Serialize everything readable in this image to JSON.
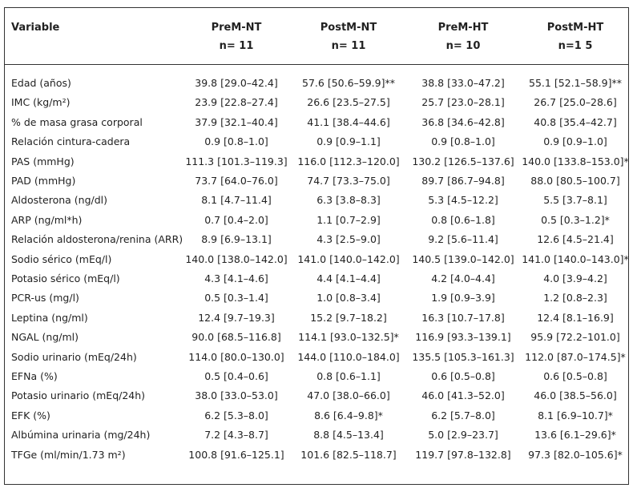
{
  "table": {
    "columns": [
      {
        "name": "Variable"
      },
      {
        "name": "PreM-NT",
        "n": "n= 11"
      },
      {
        "name": "PostM-NT",
        "n": "n= 11"
      },
      {
        "name": "PreM-HT",
        "n": "n= 10"
      },
      {
        "name": "PostM-HT",
        "n": "n=1 5"
      }
    ],
    "rows": [
      [
        "Edad (años)",
        "39.8 [29.0–42.4]",
        "57.6 [50.6–59.9]**",
        "38.8 [33.0–47.2]",
        "55.1 [52.1–58.9]**"
      ],
      [
        "IMC (kg/m²)",
        "23.9 [22.8–27.4]",
        "26.6 [23.5–27.5]",
        "25.7 [23.0–28.1]",
        "26.7 [25.0–28.6]"
      ],
      [
        "% de masa grasa corporal",
        "37.9 [32.1–40.4]",
        "41.1 [38.4–44.6]",
        "36.8 [34.6–42.8]",
        "40.8 [35.4–42.7]"
      ],
      [
        "Relación cintura-cadera",
        "0.9 [0.8–1.0]",
        "0.9 [0.9–1.1]",
        "0.9 [0.8–1.0]",
        "0.9 [0.9–1.0]"
      ],
      [
        "PAS (mmHg)",
        "111.3 [101.3–119.3]",
        "116.0 [112.3–120.0]",
        "130.2 [126.5–137.6]",
        "140.0 [133.8–153.0]*"
      ],
      [
        "PAD (mmHg)",
        "73.7 [64.0–76.0]",
        "74.7 [73.3–75.0]",
        "89.7 [86.7–94.8]",
        "88.0 [80.5–100.7]"
      ],
      [
        "Aldosterona (ng/dl)",
        "8.1 [4.7–11.4]",
        "6.3 [3.8–8.3]",
        "5.3 [4.5–12.2]",
        "5.5 [3.7–8.1]"
      ],
      [
        "ARP (ng/ml*h)",
        "0.7 [0.4–2.0]",
        "1.1 [0.7–2.9]",
        "0.8 [0.6–1.8]",
        "0.5 [0.3–1.2]*"
      ],
      [
        "Relación aldosterona/renina (ARR)",
        "8.9 [6.9–13.1]",
        "4.3 [2.5–9.0]",
        "9.2 [5.6–11.4]",
        "12.6 [4.5–21.4]"
      ],
      [
        "Sodio sérico (mEq/l)",
        "140.0 [138.0–142.0]",
        "141.0 [140.0–142.0]",
        "140.5 [139.0–142.0]",
        "141.0 [140.0–143.0]*"
      ],
      [
        "Potasio sérico (mEq/l)",
        "4.3 [4.1–4.6]",
        "4.4 [4.1–4.4]",
        "4.2 [4.0–4.4]",
        "4.0 [3.9–4.2]"
      ],
      [
        "PCR-us (mg/l)",
        "0.5 [0.3–1.4]",
        "1.0 [0.8–3.4]",
        "1.9 [0.9–3.9]",
        "1.2 [0.8–2.3]"
      ],
      [
        "Leptina (ng/ml)",
        "12.4 [9.7–19.3]",
        "15.2 [9.7–18.2]",
        "16.3 [10.7–17.8]",
        "12.4 [8.1–16.9]"
      ],
      [
        "NGAL (ng/ml)",
        "90.0 [68.5–116.8]",
        "114.1 [93.0–132.5]*",
        "116.9 [93.3–139.1]",
        "95.9 [72.2–101.0]"
      ],
      [
        "Sodio urinario (mEq/24h)",
        "114.0 [80.0–130.0]",
        "144.0 [110.0–184.0]",
        "135.5 [105.3–161.3]",
        "112.0 [87.0–174.5]*"
      ],
      [
        "EFNa (%)",
        "0.5 [0.4–0.6]",
        "0.8 [0.6–1.1]",
        "0.6 [0.5–0.8]",
        "0.6 [0.5–0.8]"
      ],
      [
        "Potasio urinario (mEq/24h)",
        "38.0 [33.0–53.0]",
        "47.0 [38.0–66.0]",
        "46.0 [41.3–52.0]",
        "46.0 [38.5–56.0]"
      ],
      [
        "EFK (%)",
        "6.2 [5.3–8.0]",
        "8.6 [6.4–9.8]*",
        "6.2 [5.7–8.0]",
        "8.1 [6.9–10.7]*"
      ],
      [
        "Albúmina urinaria (mg/24h)",
        "7.2 [4.3–8.7]",
        "8.8 [4.5–13.4]",
        "5.0 [2.9–23.7]",
        "13.6 [6.1–29.6]*"
      ],
      [
        "TFGe (ml/min/1.73 m²)",
        "100.8 [91.6–125.1]",
        "101.6 [82.5–118.7]",
        "119.7 [97.8–132.8]",
        "97.3 [82.0–105.6]*"
      ]
    ]
  }
}
